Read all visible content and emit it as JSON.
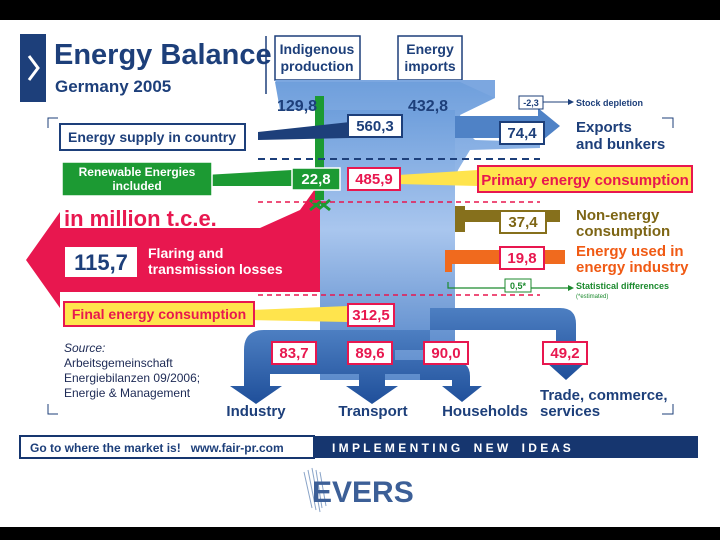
{
  "title": "Energy Balance",
  "subtitle": "Germany 2005",
  "unit_label": "in million t.c.e.",
  "columns": {
    "indigenous": [
      "Indigenous",
      "production"
    ],
    "imports": [
      "Energy",
      "imports"
    ]
  },
  "values": {
    "indigenous": "129,8",
    "imports": "432,8",
    "supply": "560,3",
    "renewables": "22,8",
    "primary": "485,9",
    "stock": "-2,3",
    "exports": "74,4",
    "non_energy": "37,4",
    "energy_industry": "19,8",
    "statistical": "0,5*",
    "flaring": "115,7",
    "final": "312,5",
    "industry": "83,7",
    "transport": "89,6",
    "households": "90,0",
    "trade": "49,2"
  },
  "labels": {
    "supply": "Energy supply in country",
    "renewables": [
      "Renewable Energies",
      "included"
    ],
    "primary": "Primary energy consumption",
    "stock": "Stock depletion",
    "exports": [
      "Exports",
      "and bunkers"
    ],
    "non_energy": [
      "Non-energy",
      "consumption"
    ],
    "energy_industry": [
      "Energy used in",
      "energy industry"
    ],
    "statistical": "Statistical differences",
    "statistical_note": "(*estimated)",
    "flaring": [
      "Flaring and",
      "transmission losses"
    ],
    "final": "Final energy consumption",
    "industry": "Industry",
    "transport": "Transport",
    "households": "Households",
    "trade": [
      "Trade, commerce,",
      "services"
    ]
  },
  "source": [
    "Source:",
    "Arbeitsgemeinschaft",
    "Energiebilanzen 09/2006;",
    "Energie & Management"
  ],
  "footer": {
    "left": "Go to where the market is!   www.fair-pr.com",
    "right": "I M P L E M E N T I N G    N E W    I D E A S",
    "logo": "EVERS"
  },
  "colors": {
    "navy": "#1d3f7a",
    "flow_blue": "#8fb4e6",
    "red": "#e8174f",
    "green": "#1c9a33",
    "olive": "#86701c",
    "orange": "#f06a1e",
    "yellow": "#ffe44d",
    "footer_blue": "#16366f"
  }
}
